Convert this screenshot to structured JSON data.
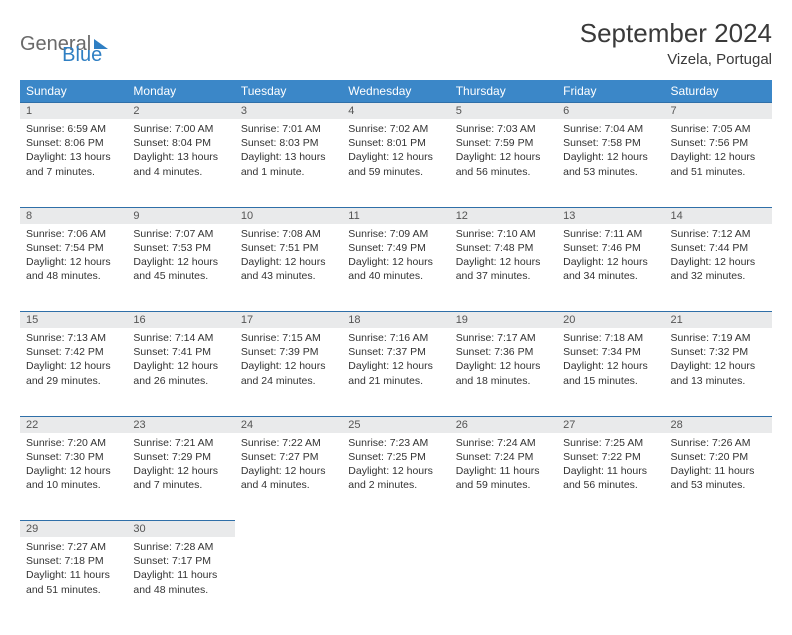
{
  "logo": {
    "part1": "General",
    "part2": "Blue"
  },
  "title": "September 2024",
  "location": "Vizela, Portugal",
  "weekdays": [
    "Sunday",
    "Monday",
    "Tuesday",
    "Wednesday",
    "Thursday",
    "Friday",
    "Saturday"
  ],
  "colors": {
    "header_bg": "#3b87c8",
    "header_text": "#ffffff",
    "daynum_bg": "#e9eaeb",
    "border": "#2f6fa8",
    "logo_gray": "#6a6a6a",
    "logo_blue": "#2f7fc3"
  },
  "weeks": [
    [
      {
        "n": "1",
        "sr": "Sunrise: 6:59 AM",
        "ss": "Sunset: 8:06 PM",
        "dl": "Daylight: 13 hours and 7 minutes."
      },
      {
        "n": "2",
        "sr": "Sunrise: 7:00 AM",
        "ss": "Sunset: 8:04 PM",
        "dl": "Daylight: 13 hours and 4 minutes."
      },
      {
        "n": "3",
        "sr": "Sunrise: 7:01 AM",
        "ss": "Sunset: 8:03 PM",
        "dl": "Daylight: 13 hours and 1 minute."
      },
      {
        "n": "4",
        "sr": "Sunrise: 7:02 AM",
        "ss": "Sunset: 8:01 PM",
        "dl": "Daylight: 12 hours and 59 minutes."
      },
      {
        "n": "5",
        "sr": "Sunrise: 7:03 AM",
        "ss": "Sunset: 7:59 PM",
        "dl": "Daylight: 12 hours and 56 minutes."
      },
      {
        "n": "6",
        "sr": "Sunrise: 7:04 AM",
        "ss": "Sunset: 7:58 PM",
        "dl": "Daylight: 12 hours and 53 minutes."
      },
      {
        "n": "7",
        "sr": "Sunrise: 7:05 AM",
        "ss": "Sunset: 7:56 PM",
        "dl": "Daylight: 12 hours and 51 minutes."
      }
    ],
    [
      {
        "n": "8",
        "sr": "Sunrise: 7:06 AM",
        "ss": "Sunset: 7:54 PM",
        "dl": "Daylight: 12 hours and 48 minutes."
      },
      {
        "n": "9",
        "sr": "Sunrise: 7:07 AM",
        "ss": "Sunset: 7:53 PM",
        "dl": "Daylight: 12 hours and 45 minutes."
      },
      {
        "n": "10",
        "sr": "Sunrise: 7:08 AM",
        "ss": "Sunset: 7:51 PM",
        "dl": "Daylight: 12 hours and 43 minutes."
      },
      {
        "n": "11",
        "sr": "Sunrise: 7:09 AM",
        "ss": "Sunset: 7:49 PM",
        "dl": "Daylight: 12 hours and 40 minutes."
      },
      {
        "n": "12",
        "sr": "Sunrise: 7:10 AM",
        "ss": "Sunset: 7:48 PM",
        "dl": "Daylight: 12 hours and 37 minutes."
      },
      {
        "n": "13",
        "sr": "Sunrise: 7:11 AM",
        "ss": "Sunset: 7:46 PM",
        "dl": "Daylight: 12 hours and 34 minutes."
      },
      {
        "n": "14",
        "sr": "Sunrise: 7:12 AM",
        "ss": "Sunset: 7:44 PM",
        "dl": "Daylight: 12 hours and 32 minutes."
      }
    ],
    [
      {
        "n": "15",
        "sr": "Sunrise: 7:13 AM",
        "ss": "Sunset: 7:42 PM",
        "dl": "Daylight: 12 hours and 29 minutes."
      },
      {
        "n": "16",
        "sr": "Sunrise: 7:14 AM",
        "ss": "Sunset: 7:41 PM",
        "dl": "Daylight: 12 hours and 26 minutes."
      },
      {
        "n": "17",
        "sr": "Sunrise: 7:15 AM",
        "ss": "Sunset: 7:39 PM",
        "dl": "Daylight: 12 hours and 24 minutes."
      },
      {
        "n": "18",
        "sr": "Sunrise: 7:16 AM",
        "ss": "Sunset: 7:37 PM",
        "dl": "Daylight: 12 hours and 21 minutes."
      },
      {
        "n": "19",
        "sr": "Sunrise: 7:17 AM",
        "ss": "Sunset: 7:36 PM",
        "dl": "Daylight: 12 hours and 18 minutes."
      },
      {
        "n": "20",
        "sr": "Sunrise: 7:18 AM",
        "ss": "Sunset: 7:34 PM",
        "dl": "Daylight: 12 hours and 15 minutes."
      },
      {
        "n": "21",
        "sr": "Sunrise: 7:19 AM",
        "ss": "Sunset: 7:32 PM",
        "dl": "Daylight: 12 hours and 13 minutes."
      }
    ],
    [
      {
        "n": "22",
        "sr": "Sunrise: 7:20 AM",
        "ss": "Sunset: 7:30 PM",
        "dl": "Daylight: 12 hours and 10 minutes."
      },
      {
        "n": "23",
        "sr": "Sunrise: 7:21 AM",
        "ss": "Sunset: 7:29 PM",
        "dl": "Daylight: 12 hours and 7 minutes."
      },
      {
        "n": "24",
        "sr": "Sunrise: 7:22 AM",
        "ss": "Sunset: 7:27 PM",
        "dl": "Daylight: 12 hours and 4 minutes."
      },
      {
        "n": "25",
        "sr": "Sunrise: 7:23 AM",
        "ss": "Sunset: 7:25 PM",
        "dl": "Daylight: 12 hours and 2 minutes."
      },
      {
        "n": "26",
        "sr": "Sunrise: 7:24 AM",
        "ss": "Sunset: 7:24 PM",
        "dl": "Daylight: 11 hours and 59 minutes."
      },
      {
        "n": "27",
        "sr": "Sunrise: 7:25 AM",
        "ss": "Sunset: 7:22 PM",
        "dl": "Daylight: 11 hours and 56 minutes."
      },
      {
        "n": "28",
        "sr": "Sunrise: 7:26 AM",
        "ss": "Sunset: 7:20 PM",
        "dl": "Daylight: 11 hours and 53 minutes."
      }
    ],
    [
      {
        "n": "29",
        "sr": "Sunrise: 7:27 AM",
        "ss": "Sunset: 7:18 PM",
        "dl": "Daylight: 11 hours and 51 minutes."
      },
      {
        "n": "30",
        "sr": "Sunrise: 7:28 AM",
        "ss": "Sunset: 7:17 PM",
        "dl": "Daylight: 11 hours and 48 minutes."
      },
      {
        "n": "",
        "sr": "",
        "ss": "",
        "dl": ""
      },
      {
        "n": "",
        "sr": "",
        "ss": "",
        "dl": ""
      },
      {
        "n": "",
        "sr": "",
        "ss": "",
        "dl": ""
      },
      {
        "n": "",
        "sr": "",
        "ss": "",
        "dl": ""
      },
      {
        "n": "",
        "sr": "",
        "ss": "",
        "dl": ""
      }
    ]
  ]
}
